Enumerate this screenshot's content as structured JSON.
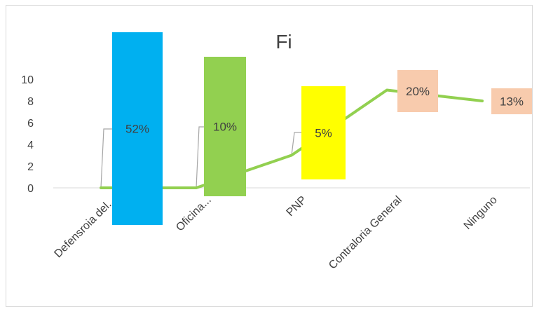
{
  "chart_data": {
    "type": "line",
    "title": "Fi",
    "categories": [
      "Defensroia del...",
      "Oficina...",
      "PNP",
      "Contraloria General",
      "Ninguno"
    ],
    "series": [
      {
        "values": [
          0,
          0,
          3,
          9,
          8
        ]
      }
    ],
    "ylim": [
      0,
      10
    ],
    "yticks": [
      0,
      2,
      4,
      6,
      8,
      10
    ],
    "grid": false,
    "line_color": "#92d050",
    "data_labels": [
      {
        "text": "52%",
        "fill": "#00b0f0",
        "leader_line": true
      },
      {
        "text": "10%",
        "fill": "#92d050",
        "leader_line": true
      },
      {
        "text": "5%",
        "fill": "#ffff00",
        "leader_line": true
      },
      {
        "text": "20%",
        "fill": "#f8cbad",
        "leader_line": false
      },
      {
        "text": "13%",
        "fill": "#f8cbad",
        "leader_line": false
      }
    ]
  }
}
